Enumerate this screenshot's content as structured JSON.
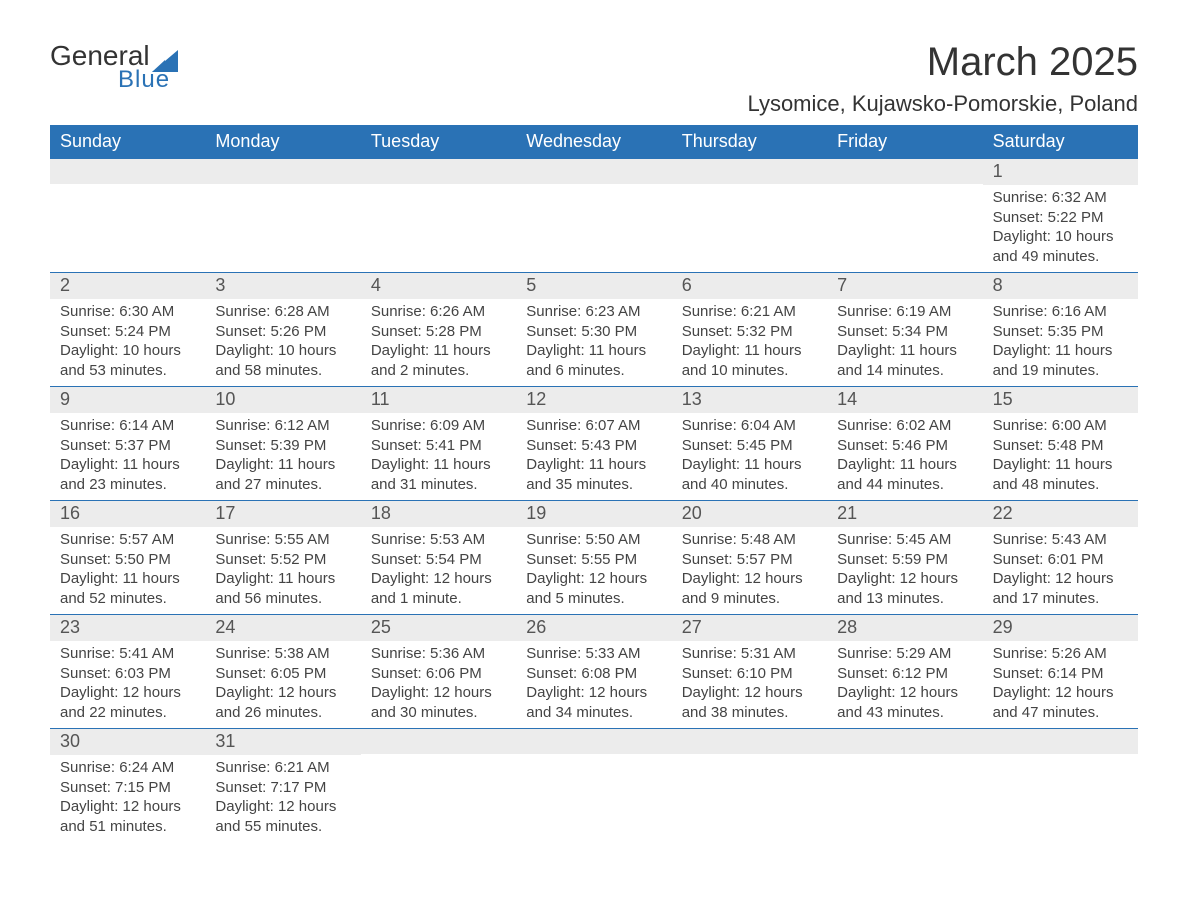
{
  "brand": {
    "word1": "General",
    "word2": "Blue",
    "accent": "#2a72b5"
  },
  "title": "March 2025",
  "location": "Lysomice, Kujawsko-Pomorskie, Poland",
  "headers": [
    "Sunday",
    "Monday",
    "Tuesday",
    "Wednesday",
    "Thursday",
    "Friday",
    "Saturday"
  ],
  "colors": {
    "header_bg": "#2a72b5",
    "header_text": "#ffffff",
    "daynum_bg": "#ececec",
    "text": "#444444",
    "row_border": "#2a72b5"
  },
  "weeks": [
    [
      null,
      null,
      null,
      null,
      null,
      null,
      {
        "n": "1",
        "sunrise": "Sunrise: 6:32 AM",
        "sunset": "Sunset: 5:22 PM",
        "day": "Daylight: 10 hours and 49 minutes."
      }
    ],
    [
      {
        "n": "2",
        "sunrise": "Sunrise: 6:30 AM",
        "sunset": "Sunset: 5:24 PM",
        "day": "Daylight: 10 hours and 53 minutes."
      },
      {
        "n": "3",
        "sunrise": "Sunrise: 6:28 AM",
        "sunset": "Sunset: 5:26 PM",
        "day": "Daylight: 10 hours and 58 minutes."
      },
      {
        "n": "4",
        "sunrise": "Sunrise: 6:26 AM",
        "sunset": "Sunset: 5:28 PM",
        "day": "Daylight: 11 hours and 2 minutes."
      },
      {
        "n": "5",
        "sunrise": "Sunrise: 6:23 AM",
        "sunset": "Sunset: 5:30 PM",
        "day": "Daylight: 11 hours and 6 minutes."
      },
      {
        "n": "6",
        "sunrise": "Sunrise: 6:21 AM",
        "sunset": "Sunset: 5:32 PM",
        "day": "Daylight: 11 hours and 10 minutes."
      },
      {
        "n": "7",
        "sunrise": "Sunrise: 6:19 AM",
        "sunset": "Sunset: 5:34 PM",
        "day": "Daylight: 11 hours and 14 minutes."
      },
      {
        "n": "8",
        "sunrise": "Sunrise: 6:16 AM",
        "sunset": "Sunset: 5:35 PM",
        "day": "Daylight: 11 hours and 19 minutes."
      }
    ],
    [
      {
        "n": "9",
        "sunrise": "Sunrise: 6:14 AM",
        "sunset": "Sunset: 5:37 PM",
        "day": "Daylight: 11 hours and 23 minutes."
      },
      {
        "n": "10",
        "sunrise": "Sunrise: 6:12 AM",
        "sunset": "Sunset: 5:39 PM",
        "day": "Daylight: 11 hours and 27 minutes."
      },
      {
        "n": "11",
        "sunrise": "Sunrise: 6:09 AM",
        "sunset": "Sunset: 5:41 PM",
        "day": "Daylight: 11 hours and 31 minutes."
      },
      {
        "n": "12",
        "sunrise": "Sunrise: 6:07 AM",
        "sunset": "Sunset: 5:43 PM",
        "day": "Daylight: 11 hours and 35 minutes."
      },
      {
        "n": "13",
        "sunrise": "Sunrise: 6:04 AM",
        "sunset": "Sunset: 5:45 PM",
        "day": "Daylight: 11 hours and 40 minutes."
      },
      {
        "n": "14",
        "sunrise": "Sunrise: 6:02 AM",
        "sunset": "Sunset: 5:46 PM",
        "day": "Daylight: 11 hours and 44 minutes."
      },
      {
        "n": "15",
        "sunrise": "Sunrise: 6:00 AM",
        "sunset": "Sunset: 5:48 PM",
        "day": "Daylight: 11 hours and 48 minutes."
      }
    ],
    [
      {
        "n": "16",
        "sunrise": "Sunrise: 5:57 AM",
        "sunset": "Sunset: 5:50 PM",
        "day": "Daylight: 11 hours and 52 minutes."
      },
      {
        "n": "17",
        "sunrise": "Sunrise: 5:55 AM",
        "sunset": "Sunset: 5:52 PM",
        "day": "Daylight: 11 hours and 56 minutes."
      },
      {
        "n": "18",
        "sunrise": "Sunrise: 5:53 AM",
        "sunset": "Sunset: 5:54 PM",
        "day": "Daylight: 12 hours and 1 minute."
      },
      {
        "n": "19",
        "sunrise": "Sunrise: 5:50 AM",
        "sunset": "Sunset: 5:55 PM",
        "day": "Daylight: 12 hours and 5 minutes."
      },
      {
        "n": "20",
        "sunrise": "Sunrise: 5:48 AM",
        "sunset": "Sunset: 5:57 PM",
        "day": "Daylight: 12 hours and 9 minutes."
      },
      {
        "n": "21",
        "sunrise": "Sunrise: 5:45 AM",
        "sunset": "Sunset: 5:59 PM",
        "day": "Daylight: 12 hours and 13 minutes."
      },
      {
        "n": "22",
        "sunrise": "Sunrise: 5:43 AM",
        "sunset": "Sunset: 6:01 PM",
        "day": "Daylight: 12 hours and 17 minutes."
      }
    ],
    [
      {
        "n": "23",
        "sunrise": "Sunrise: 5:41 AM",
        "sunset": "Sunset: 6:03 PM",
        "day": "Daylight: 12 hours and 22 minutes."
      },
      {
        "n": "24",
        "sunrise": "Sunrise: 5:38 AM",
        "sunset": "Sunset: 6:05 PM",
        "day": "Daylight: 12 hours and 26 minutes."
      },
      {
        "n": "25",
        "sunrise": "Sunrise: 5:36 AM",
        "sunset": "Sunset: 6:06 PM",
        "day": "Daylight: 12 hours and 30 minutes."
      },
      {
        "n": "26",
        "sunrise": "Sunrise: 5:33 AM",
        "sunset": "Sunset: 6:08 PM",
        "day": "Daylight: 12 hours and 34 minutes."
      },
      {
        "n": "27",
        "sunrise": "Sunrise: 5:31 AM",
        "sunset": "Sunset: 6:10 PM",
        "day": "Daylight: 12 hours and 38 minutes."
      },
      {
        "n": "28",
        "sunrise": "Sunrise: 5:29 AM",
        "sunset": "Sunset: 6:12 PM",
        "day": "Daylight: 12 hours and 43 minutes."
      },
      {
        "n": "29",
        "sunrise": "Sunrise: 5:26 AM",
        "sunset": "Sunset: 6:14 PM",
        "day": "Daylight: 12 hours and 47 minutes."
      }
    ],
    [
      {
        "n": "30",
        "sunrise": "Sunrise: 6:24 AM",
        "sunset": "Sunset: 7:15 PM",
        "day": "Daylight: 12 hours and 51 minutes."
      },
      {
        "n": "31",
        "sunrise": "Sunrise: 6:21 AM",
        "sunset": "Sunset: 7:17 PM",
        "day": "Daylight: 12 hours and 55 minutes."
      },
      null,
      null,
      null,
      null,
      null
    ]
  ]
}
